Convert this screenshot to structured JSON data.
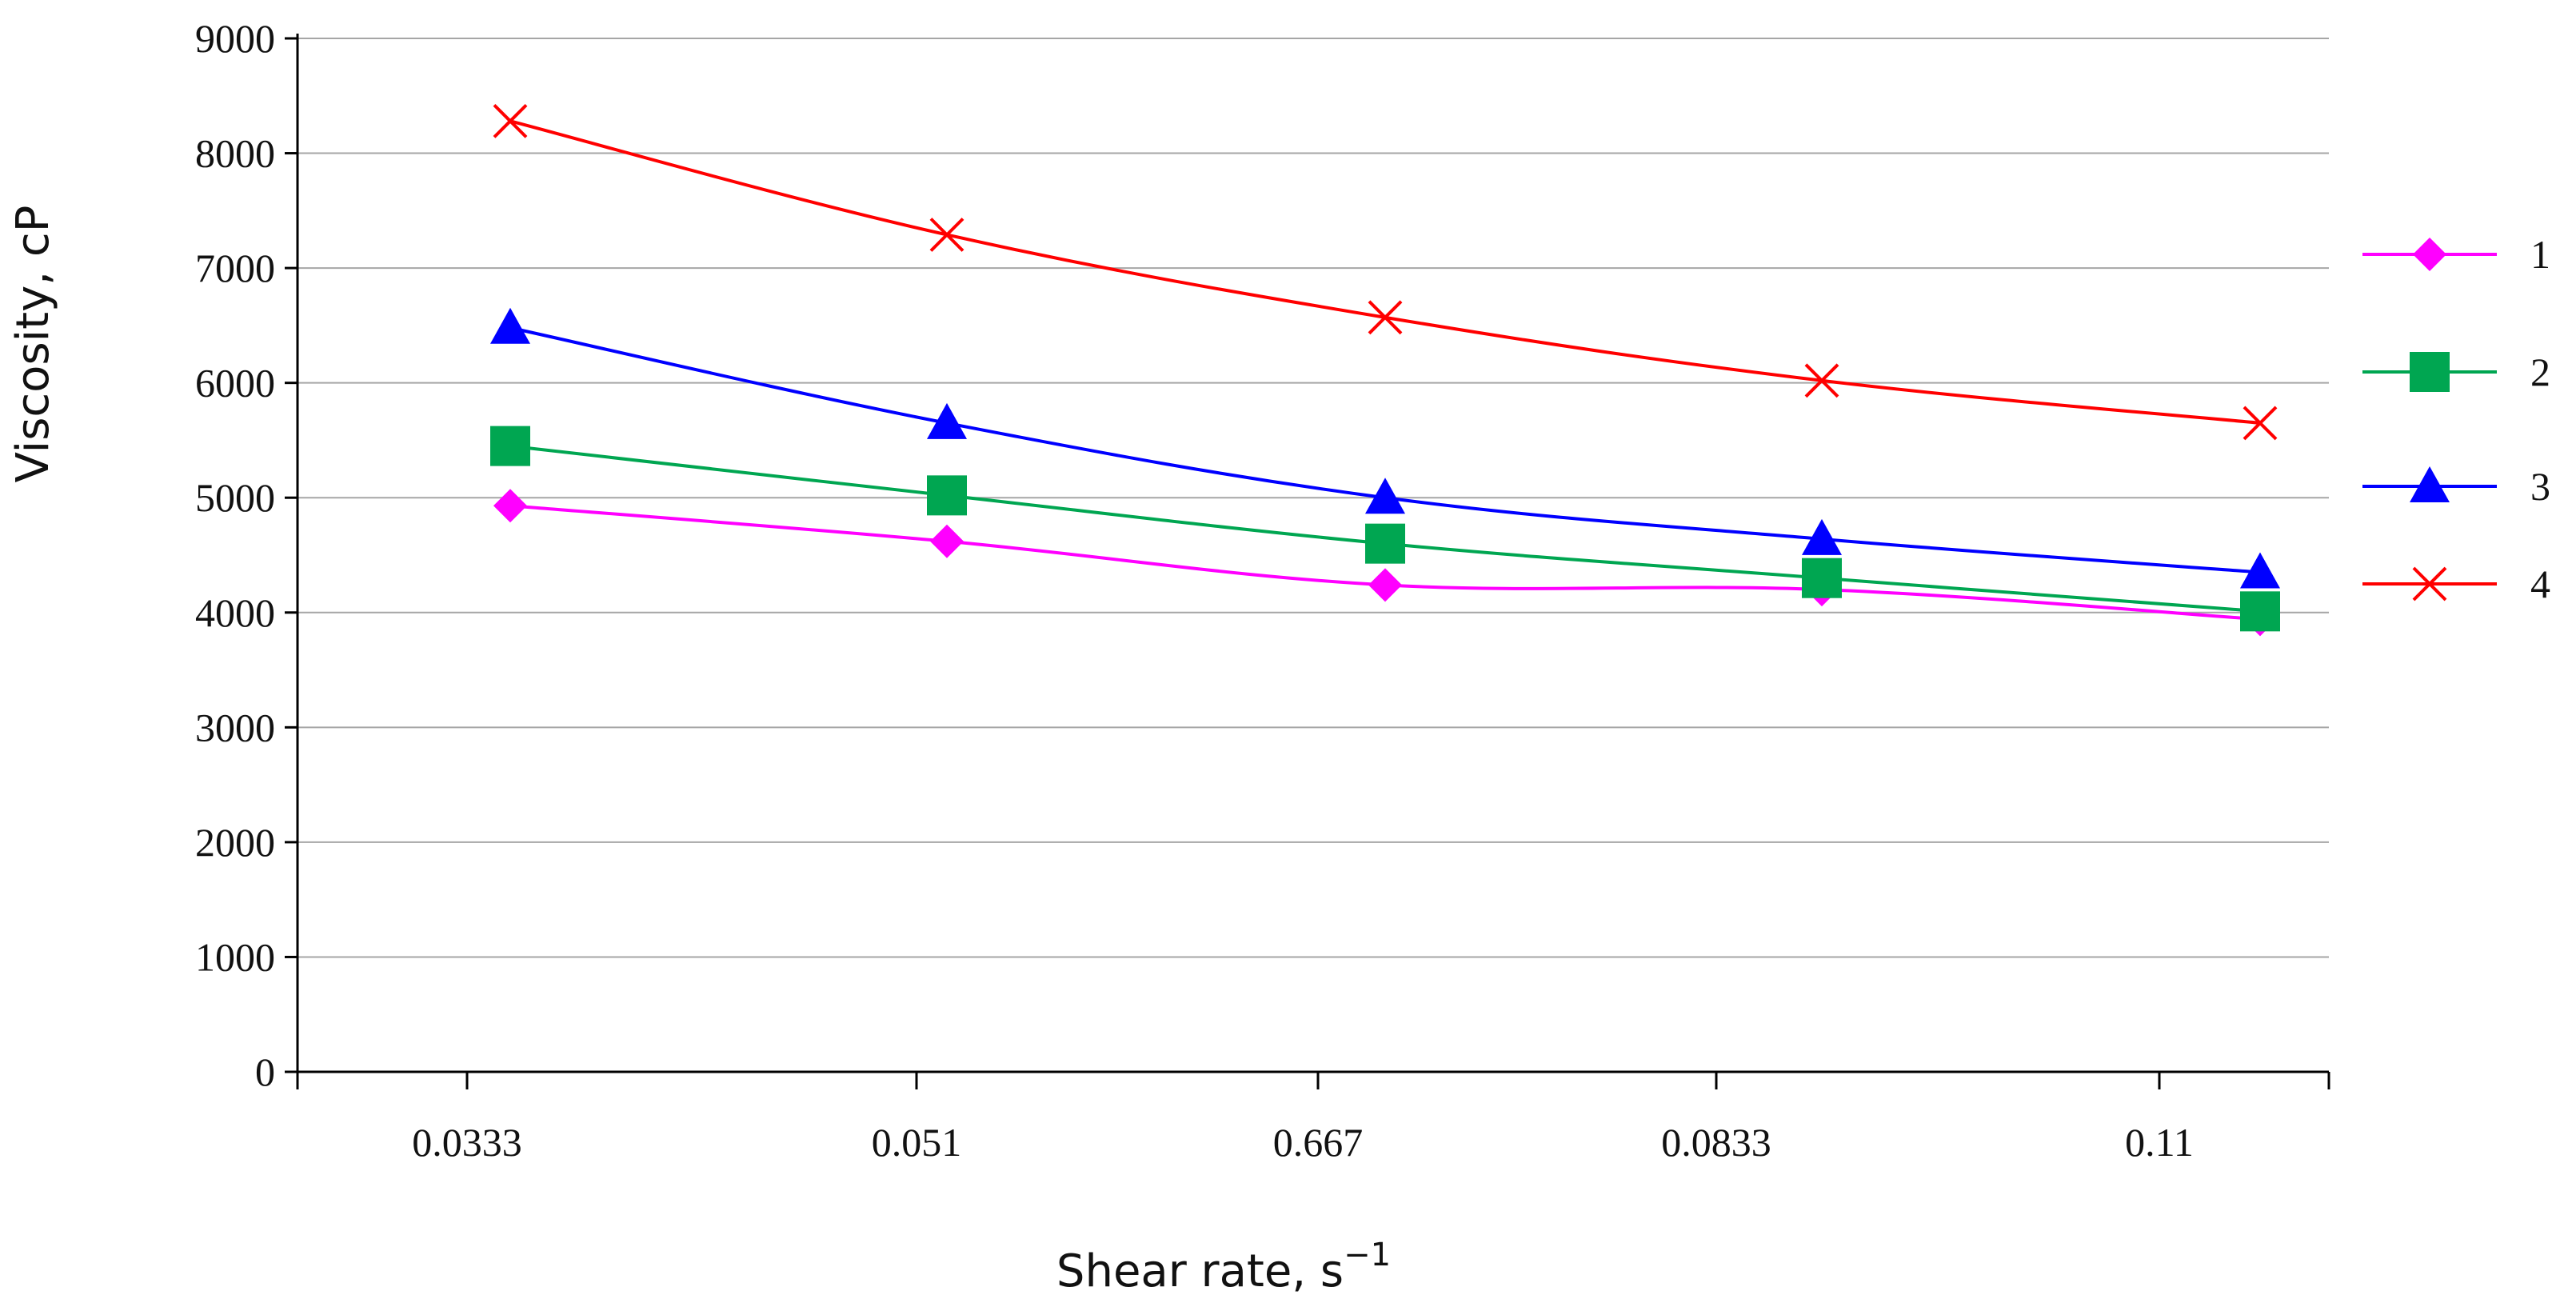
{
  "chart_data": {
    "type": "line",
    "title": "",
    "xlabel": "Shear rate, s",
    "xlabel_sup": "−1",
    "ylabel": "Viscosity, cP",
    "categories": [
      "0.0333",
      "0.051",
      "0.667",
      "0.0833",
      "0.11"
    ],
    "ylim": [
      0,
      9000
    ],
    "yticks": [
      "0",
      "1000",
      "2000",
      "3000",
      "4000",
      "5000",
      "6000",
      "7000",
      "8000",
      "9000"
    ],
    "grid": true,
    "legend_position": "right",
    "series": [
      {
        "name": "1",
        "color": "#ff00ff",
        "marker": "diamond",
        "values": [
          4930,
          4620,
          4240,
          4200,
          3940
        ]
      },
      {
        "name": "2",
        "color": "#00a651",
        "marker": "square",
        "values": [
          5450,
          5020,
          4600,
          4300,
          4010
        ]
      },
      {
        "name": "3",
        "color": "#0000ff",
        "marker": "triangle",
        "values": [
          6480,
          5650,
          5000,
          4640,
          4350
        ]
      },
      {
        "name": "4",
        "color": "#ff0000",
        "marker": "x",
        "values": [
          8280,
          7290,
          6570,
          6020,
          5650
        ]
      }
    ]
  }
}
